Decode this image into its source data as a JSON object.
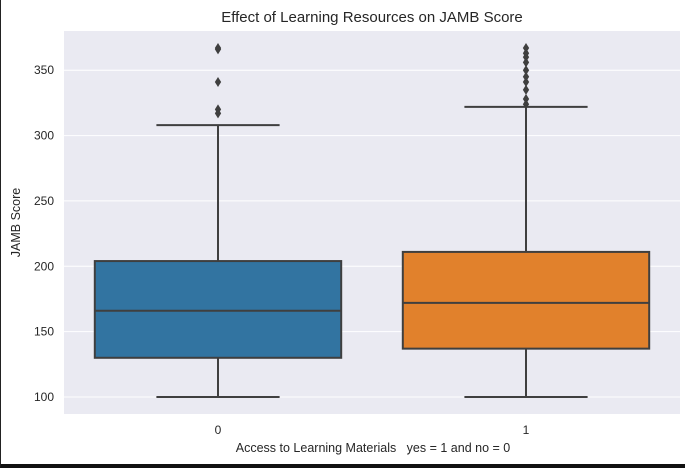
{
  "chart_data": {
    "type": "box",
    "title": "Effect of Learning Resources on JAMB Score",
    "xlabel": "Access to Learning Materials   yes = 1 and no = 0",
    "ylabel": "JAMB Score",
    "ylim": [
      87,
      380
    ],
    "yticks": [
      100,
      150,
      200,
      250,
      300,
      350
    ],
    "grid": true,
    "categories": [
      "0",
      "1"
    ],
    "boxes": [
      {
        "category": "0",
        "whisker_low": 100,
        "q1": 130,
        "median": 166,
        "q3": 204,
        "whisker_high": 308,
        "outliers": [
          317,
          320,
          341,
          366,
          367
        ],
        "color": "#3274a1"
      },
      {
        "category": "1",
        "whisker_low": 100,
        "q1": 137,
        "median": 172,
        "q3": 211,
        "whisker_high": 322,
        "outliers": [
          324,
          328,
          335,
          341,
          345,
          350,
          356,
          360,
          363,
          367
        ],
        "color": "#e1812c"
      }
    ]
  }
}
